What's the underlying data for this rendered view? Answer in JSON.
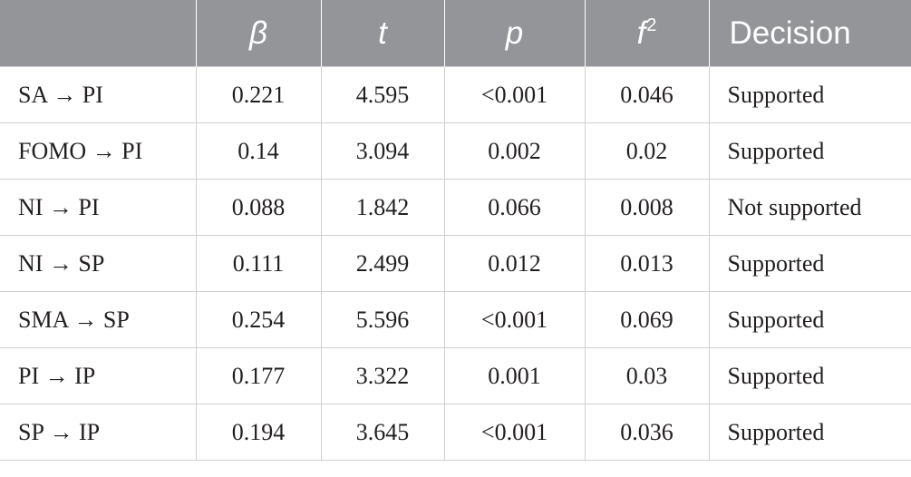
{
  "table": {
    "headers": {
      "path": "",
      "beta": "β",
      "t": "t",
      "p": "p",
      "f2_base": "f",
      "f2_sup": "2",
      "decision": "Decision"
    },
    "rows": [
      {
        "path": "SA → PI",
        "beta": "0.221",
        "t": "4.595",
        "p": "<0.001",
        "f2": "0.046",
        "decision": "Supported"
      },
      {
        "path": "FOMO → PI",
        "beta": "0.14",
        "t": "3.094",
        "p": "0.002",
        "f2": "0.02",
        "decision": "Supported"
      },
      {
        "path": "NI → PI",
        "beta": "0.088",
        "t": "1.842",
        "p": "0.066",
        "f2": "0.008",
        "decision": "Not supported"
      },
      {
        "path": "NI → SP",
        "beta": "0.111",
        "t": "2.499",
        "p": "0.012",
        "f2": "0.013",
        "decision": "Supported"
      },
      {
        "path": "SMA → SP",
        "beta": "0.254",
        "t": "5.596",
        "p": "<0.001",
        "f2": "0.069",
        "decision": "Supported"
      },
      {
        "path": "PI → IP",
        "beta": "0.177",
        "t": "3.322",
        "p": "0.001",
        "f2": "0.03",
        "decision": "Supported"
      },
      {
        "path": "SP → IP",
        "beta": "0.194",
        "t": "3.645",
        "p": "<0.001",
        "f2": "0.036",
        "decision": "Supported"
      }
    ]
  },
  "colors": {
    "header_bg": "#939598",
    "header_text": "#ffffff",
    "grid": "#cfcfcf",
    "body_text": "#231f20"
  }
}
